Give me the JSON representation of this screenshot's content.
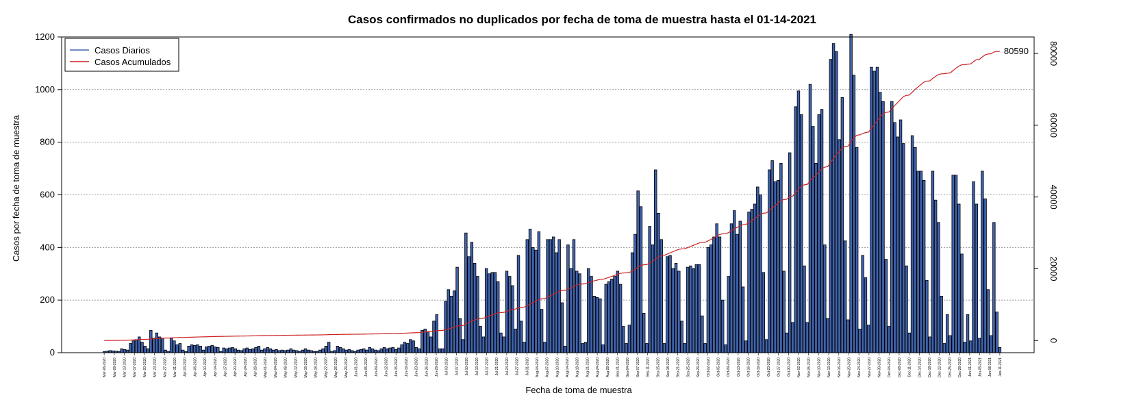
{
  "chart_data": {
    "type": "bar",
    "title": "Casos confirmados no duplicados por fecha de toma de muestra hasta el 01-14-2021",
    "xlabel": "Fecha de toma de muestra",
    "ylabel": "Casos por fecha de toma de muestra",
    "ylim": [
      0,
      1200
    ],
    "y_ticks": [
      0,
      200,
      400,
      600,
      800,
      1000,
      1200
    ],
    "y2lim": [
      -3400,
      84600
    ],
    "y2_ticks": [
      0,
      20000,
      40000,
      60000,
      80000
    ],
    "grid": "horizontal dashed",
    "legend_position": "top-left",
    "bar_color": "#4063ad",
    "line_color": "#cc2222",
    "start_date": "2020-03-06",
    "series": [
      {
        "name": "Casos Diarios",
        "axis": "left",
        "values": [
          4,
          6,
          8,
          7,
          6,
          5,
          15,
          12,
          10,
          35,
          45,
          50,
          60,
          40,
          25,
          15,
          85,
          55,
          75,
          60,
          55,
          10,
          5,
          55,
          45,
          30,
          35,
          10,
          5,
          25,
          30,
          28,
          30,
          25,
          10,
          22,
          25,
          28,
          22,
          20,
          5,
          18,
          15,
          18,
          20,
          15,
          10,
          8,
          15,
          18,
          12,
          15,
          20,
          25,
          10,
          15,
          20,
          15,
          10,
          12,
          8,
          10,
          8,
          10,
          15,
          10,
          8,
          5,
          10,
          15,
          10,
          8,
          5,
          5,
          10,
          15,
          25,
          40,
          5,
          8,
          25,
          20,
          15,
          10,
          12,
          8,
          5,
          10,
          12,
          15,
          10,
          20,
          15,
          10,
          8,
          15,
          20,
          15,
          18,
          20,
          12,
          18,
          30,
          40,
          35,
          50,
          45,
          20,
          15,
          85,
          90,
          80,
          60,
          120,
          145,
          15,
          15,
          195,
          240,
          215,
          235,
          325,
          130,
          50,
          455,
          365,
          420,
          340,
          290,
          100,
          60,
          320,
          300,
          305,
          305,
          270,
          75,
          60,
          310,
          290,
          255,
          90,
          370,
          120,
          40,
          430,
          470,
          400,
          390,
          460,
          165,
          40,
          430,
          430,
          440,
          380,
          430,
          190,
          25,
          410,
          320,
          430,
          310,
          300,
          35,
          40,
          320,
          290,
          215,
          210,
          205,
          30,
          260,
          270,
          280,
          290,
          310,
          260,
          100,
          35,
          105,
          380,
          450,
          615,
          555,
          150,
          35,
          480,
          410,
          695,
          530,
          430,
          35,
          365,
          370,
          320,
          340,
          310,
          120,
          35,
          325,
          330,
          320,
          335,
          335,
          140,
          35,
          400,
          410,
          440,
          490,
          440,
          200,
          30,
          290,
          490,
          540,
          450,
          500,
          250,
          45,
          535,
          545,
          565,
          630,
          600,
          305,
          50,
          695,
          730,
          650,
          655,
          720,
          310,
          75,
          760,
          115,
          935,
          995,
          905,
          330,
          115,
          1020,
          860,
          720,
          905,
          925,
          410,
          130,
          1115,
          1175,
          1145,
          810,
          970,
          425,
          125,
          1210,
          1055,
          780,
          90,
          370,
          285,
          105,
          1085,
          1070,
          1085,
          990,
          955,
          355,
          100,
          955,
          875,
          820,
          885,
          795,
          330,
          75,
          825,
          780,
          690,
          690,
          655,
          275,
          60,
          690,
          580,
          495,
          215,
          35,
          145,
          65,
          675,
          675,
          565,
          375,
          40,
          145,
          45,
          650,
          565,
          55,
          690,
          585,
          240,
          65,
          495,
          155,
          20
        ]
      },
      {
        "name": "Casos Acumulados",
        "axis": "right",
        "label": "80590"
      }
    ],
    "x_tick_labels": [
      "Mar-06-2020",
      "Mar-09-2020",
      "Mar-13-2020",
      "Mar-17-2020",
      "Mar-20-2020",
      "Mar-23-2020",
      "Mar-27-2020",
      "Mar-31-2020",
      "Apr-03-2020",
      "Apr-06-2020",
      "Apr-10-2020",
      "Apr-14-2020",
      "Apr-17-2020",
      "Apr-20-2020",
      "Apr-24-2020",
      "Apr-28-2020",
      "May-01-2020",
      "May-04-2020",
      "May-08-2020",
      "May-12-2020",
      "May-15-2020",
      "May-18-2020",
      "May-22-2020",
      "May-26-2020",
      "May-29-2020",
      "Jun-01-2020",
      "Jun-05-2020",
      "Jun-09-2020",
      "Jun-12-2020",
      "Jun-15-2020",
      "Jun-19-2020",
      "Jun-23-2020",
      "Jun-26-2020",
      "Jun-29-2020",
      "Jul-03-2020",
      "Jul-07-2020",
      "Jul-10-2020",
      "Jul-13-2020",
      "Jul-17-2020",
      "Jul-21-2020",
      "Jul-24-2020",
      "Jul-27-2020",
      "Jul-31-2020",
      "Aug-04-2020",
      "Aug-07-2020",
      "Aug-10-2020",
      "Aug-14-2020",
      "Aug-18-2020",
      "Aug-21-2020",
      "Aug-24-2020",
      "Aug-28-2020",
      "Sep-01-2020",
      "Sep-04-2020",
      "Sep-07-2020",
      "Sep-11-2020",
      "Sep-15-2020",
      "Sep-18-2020",
      "Sep-21-2020",
      "Sep-25-2020",
      "Sep-29-2020",
      "Oct-02-2020",
      "Oct-05-2020",
      "Oct-09-2020",
      "Oct-13-2020",
      "Oct-16-2020",
      "Oct-19-2020",
      "Oct-23-2020",
      "Oct-27-2020",
      "Oct-30-2020",
      "Nov-02-2020",
      "Nov-06-2020",
      "Nov-10-2020",
      "Nov-13-2020",
      "Nov-16-2020",
      "Nov-20-2020",
      "Nov-24-2020",
      "Nov-27-2020",
      "Nov-30-2020",
      "Dec-04-2020",
      "Dec-08-2020",
      "Dec-11-2020",
      "Dec-14-2020",
      "Dec-18-2020",
      "Dec-22-2020",
      "Dec-25-2020",
      "Dec-28-2020",
      "Jan-01-2021",
      "Jan-05-2021",
      "Jan-08-2021",
      "Jan-11-2021"
    ]
  }
}
